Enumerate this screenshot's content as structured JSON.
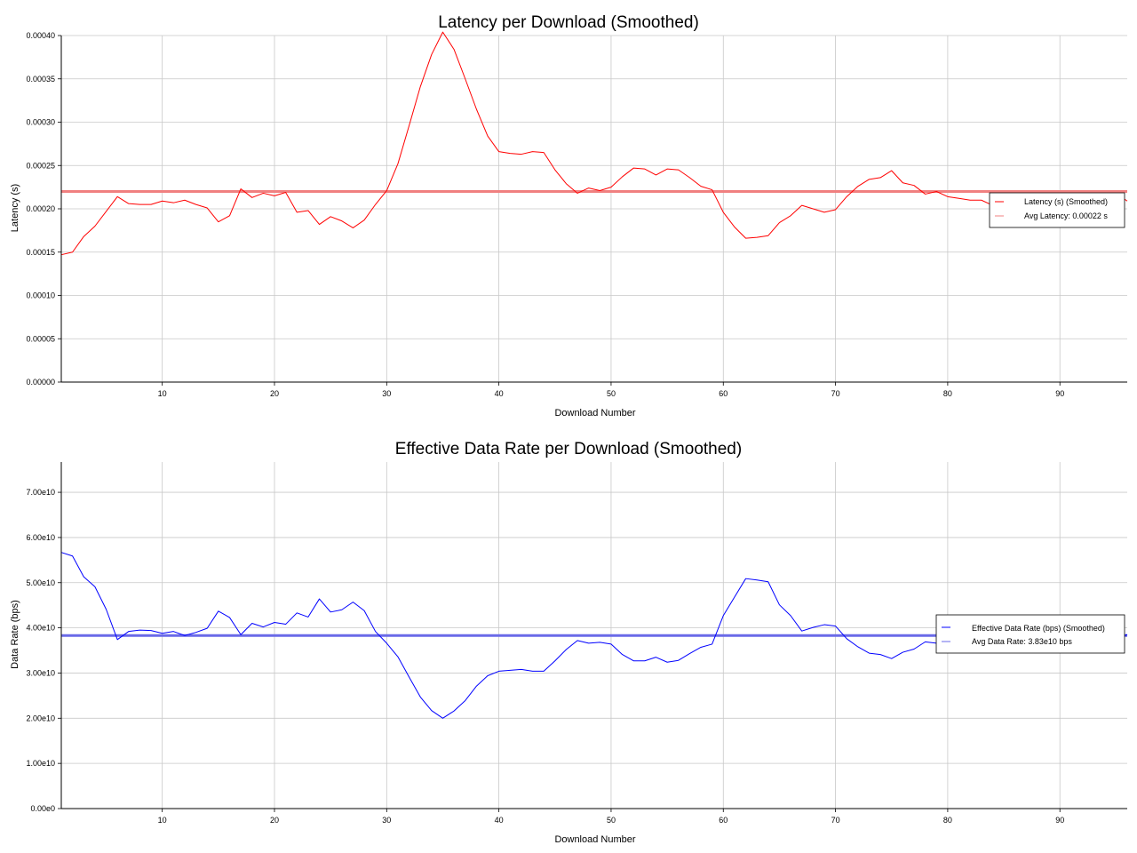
{
  "chart_data": [
    {
      "type": "line",
      "title": "Latency per Download (Smoothed)",
      "xlabel": "Download Number",
      "ylabel": "Latency (s)",
      "xlim": [
        1,
        96
      ],
      "ylim": [
        0,
        0.0004
      ],
      "xticks": [
        10,
        20,
        30,
        40,
        50,
        60,
        70,
        80,
        90
      ],
      "yticks": [
        0,
        5e-05,
        0.0001,
        0.00015,
        0.0002,
        0.00025,
        0.0003,
        0.00035,
        0.0004
      ],
      "ytick_labels": [
        "0.00000",
        "0.00005",
        "0.00010",
        "0.00015",
        "0.00020",
        "0.00025",
        "0.00030",
        "0.00035",
        "0.00040"
      ],
      "grid": true,
      "legend_position": "right",
      "series": [
        {
          "name": "Latency (s) (Smoothed)",
          "color": "#ff0000",
          "x": [
            1,
            2,
            3,
            4,
            5,
            6,
            7,
            8,
            9,
            10,
            11,
            12,
            13,
            14,
            15,
            16,
            17,
            18,
            19,
            20,
            21,
            22,
            23,
            24,
            25,
            26,
            27,
            28,
            29,
            30,
            31,
            32,
            33,
            34,
            35,
            36,
            37,
            38,
            39,
            40,
            41,
            42,
            43,
            44,
            45,
            46,
            47,
            48,
            49,
            50,
            51,
            52,
            53,
            54,
            55,
            56,
            57,
            58,
            59,
            60,
            61,
            62,
            63,
            64,
            65,
            66,
            67,
            68,
            69,
            70,
            71,
            72,
            73,
            74,
            75,
            76,
            77,
            78,
            79,
            80,
            81,
            82,
            83,
            84,
            85,
            86,
            87,
            88,
            89,
            90,
            91,
            92,
            93,
            94,
            95,
            96
          ],
          "values": [
            0.000147,
            0.00015,
            0.000168,
            0.00018,
            0.000197,
            0.000214,
            0.000206,
            0.000205,
            0.000205,
            0.000209,
            0.000207,
            0.00021,
            0.000205,
            0.000201,
            0.000185,
            0.000192,
            0.000223,
            0.000213,
            0.000218,
            0.000215,
            0.000219,
            0.000196,
            0.000198,
            0.000182,
            0.000191,
            0.000186,
            0.000178,
            0.000187,
            0.000205,
            0.000221,
            0.000252,
            0.000296,
            0.000341,
            0.000378,
            0.000404,
            0.000384,
            0.00035,
            0.000315,
            0.000284,
            0.000266,
            0.000264,
            0.000263,
            0.000266,
            0.000265,
            0.000245,
            0.000229,
            0.000218,
            0.000224,
            0.000221,
            0.000225,
            0.000237,
            0.000247,
            0.000246,
            0.000239,
            0.000246,
            0.000245,
            0.000236,
            0.000226,
            0.000222,
            0.000196,
            0.000179,
            0.000166,
            0.000167,
            0.000169,
            0.000184,
            0.000192,
            0.000204,
            0.0002,
            0.000196,
            0.000199,
            0.000214,
            0.000226,
            0.000234,
            0.000236,
            0.000244,
            0.00023,
            0.000227,
            0.000217,
            0.00022,
            0.000214,
            0.000212,
            0.00021,
            0.00021,
            0.000204,
            0.000206,
            0.000212,
            0.000206,
            0.000213,
            0.000206,
            0.000203,
            0.000205,
            0.000212,
            0.000207,
            0.000214,
            0.000218,
            0.000209
          ]
        }
      ],
      "average": {
        "name": "Avg Latency: 0.00022 s",
        "value": 0.00022,
        "color": "#f08080"
      }
    },
    {
      "type": "line",
      "title": "Effective Data Rate per Download (Smoothed)",
      "xlabel": "Download Number",
      "ylabel": "Data Rate (bps)",
      "xlim": [
        1,
        96
      ],
      "ylim": [
        0,
        76700000000
      ],
      "xticks": [
        10,
        20,
        30,
        40,
        50,
        60,
        70,
        80,
        90
      ],
      "yticks": [
        0,
        10000000000,
        20000000000,
        30000000000,
        40000000000,
        50000000000,
        60000000000,
        70000000000
      ],
      "ytick_labels": [
        "0.00e0",
        "1.00e10",
        "2.00e10",
        "3.00e10",
        "4.00e10",
        "5.00e10",
        "6.00e10",
        "7.00e10"
      ],
      "grid": true,
      "legend_position": "right",
      "series": [
        {
          "name": "Effective Data Rate (bps) (Smoothed)",
          "color": "#0000ff",
          "x": [
            1,
            2,
            3,
            4,
            5,
            6,
            7,
            8,
            9,
            10,
            11,
            12,
            13,
            14,
            15,
            16,
            17,
            18,
            19,
            20,
            21,
            22,
            23,
            24,
            25,
            26,
            27,
            28,
            29,
            30,
            31,
            32,
            33,
            34,
            35,
            36,
            37,
            38,
            39,
            40,
            41,
            42,
            43,
            44,
            45,
            46,
            47,
            48,
            49,
            50,
            51,
            52,
            53,
            54,
            55,
            56,
            57,
            58,
            59,
            60,
            61,
            62,
            63,
            64,
            65,
            66,
            67,
            68,
            69,
            70,
            71,
            72,
            73,
            74,
            75,
            76,
            77,
            78,
            79,
            80,
            81,
            82,
            83,
            84,
            85,
            86,
            87,
            88,
            89,
            90,
            91,
            92,
            93,
            94,
            95,
            96
          ],
          "values": [
            56700000000,
            55900000000,
            51300000000,
            49100000000,
            44100000000,
            37400000000,
            39200000000,
            39500000000,
            39400000000,
            38800000000,
            39200000000,
            38300000000,
            39000000000,
            39900000000,
            43700000000,
            42300000000,
            38500000000,
            41000000000,
            40200000000,
            41200000000,
            40800000000,
            43300000000,
            42400000000,
            46400000000,
            43500000000,
            44000000000,
            45700000000,
            43800000000,
            39200000000,
            36600000000,
            33600000000,
            29100000000,
            24700000000,
            21700000000,
            20000000000,
            21600000000,
            23900000000,
            27100000000,
            29400000000,
            30400000000,
            30600000000,
            30800000000,
            30400000000,
            30400000000,
            32700000000,
            35200000000,
            37200000000,
            36600000000,
            36800000000,
            36400000000,
            34100000000,
            32700000000,
            32700000000,
            33500000000,
            32400000000,
            32800000000,
            34300000000,
            35700000000,
            36400000000,
            42700000000,
            46800000000,
            50900000000,
            50600000000,
            50200000000,
            45100000000,
            42700000000,
            39300000000,
            40100000000,
            40700000000,
            40400000000,
            37600000000,
            35800000000,
            34400000000,
            34100000000,
            33200000000,
            34600000000,
            35300000000,
            36900000000,
            36600000000,
            37500000000,
            38000000000,
            38400000000,
            39000000000,
            39600000000,
            39900000000,
            40600000000,
            42200000000,
            41100000000,
            38500000000,
            38800000000,
            38500000000,
            37600000000,
            38900000000,
            37200000000,
            37700000000,
            38500000000
          ]
        }
      ],
      "average": {
        "name": "Avg Data Rate: 3.83e10 bps",
        "value": 38300000000,
        "color": "#6a6ae8"
      }
    }
  ]
}
